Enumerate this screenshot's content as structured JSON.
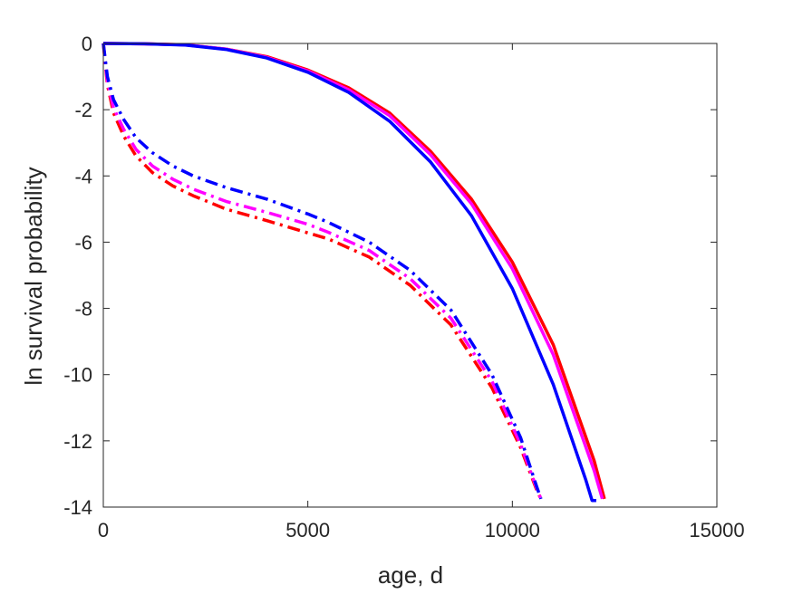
{
  "chart_data": {
    "type": "line",
    "title": "",
    "xlabel": "age, d",
    "ylabel": "ln survival probability",
    "xlim": [
      0,
      15000
    ],
    "ylim": [
      -14,
      0
    ],
    "xticks": [
      0,
      5000,
      10000,
      15000
    ],
    "yticks": [
      0,
      -2,
      -4,
      -6,
      -8,
      -10,
      -12,
      -14
    ],
    "xtick_labels": [
      "0",
      "5000",
      "10000",
      "15000"
    ],
    "ytick_labels": [
      "0",
      "-2",
      "-4",
      "-6",
      "-8",
      "-10",
      "-12",
      "-14"
    ],
    "grid": false,
    "legend": "none",
    "series": [
      {
        "color": "#ff0000",
        "style": "solid",
        "x": [
          0,
          1000,
          2000,
          3000,
          4000,
          5000,
          6000,
          7000,
          8000,
          9000,
          10000,
          11000,
          12000,
          12250
        ],
        "y": [
          0,
          -0.01,
          -0.04,
          -0.17,
          -0.4,
          -0.8,
          -1.34,
          -2.1,
          -3.26,
          -4.7,
          -6.6,
          -9.1,
          -12.6,
          -13.75
        ]
      },
      {
        "color": "#ff00ff",
        "style": "solid",
        "x": [
          0,
          1000,
          2000,
          3000,
          4000,
          5000,
          6000,
          7000,
          8000,
          9000,
          10000,
          11000,
          12000,
          12200
        ],
        "y": [
          0,
          -0.01,
          -0.04,
          -0.17,
          -0.42,
          -0.83,
          -1.4,
          -2.18,
          -3.36,
          -4.84,
          -6.8,
          -9.4,
          -12.9,
          -13.75
        ]
      },
      {
        "color": "#0000ff",
        "style": "solid",
        "x": [
          0,
          1000,
          2000,
          3000,
          4000,
          5000,
          6000,
          7000,
          8000,
          9000,
          10000,
          11000,
          11800,
          11950,
          12050
        ],
        "y": [
          0,
          -0.01,
          -0.05,
          -0.18,
          -0.44,
          -0.87,
          -1.48,
          -2.35,
          -3.58,
          -5.2,
          -7.4,
          -10.3,
          -13.2,
          -13.8,
          -13.8
        ]
      },
      {
        "color": "#ff0000",
        "style": "dashdot",
        "x": [
          0,
          100,
          250,
          500,
          800,
          1200,
          1700,
          2200,
          3000,
          4000,
          5000,
          5500,
          6500,
          7500,
          8500,
          9500,
          10200,
          10600,
          10700
        ],
        "y": [
          0,
          -1.25,
          -2.1,
          -2.8,
          -3.4,
          -3.9,
          -4.3,
          -4.6,
          -5.0,
          -5.35,
          -5.72,
          -5.9,
          -6.45,
          -7.3,
          -8.5,
          -10.4,
          -12.2,
          -13.5,
          -13.75
        ]
      },
      {
        "color": "#ff00ff",
        "style": "dashdot",
        "x": [
          0,
          100,
          250,
          500,
          800,
          1200,
          1700,
          2200,
          3000,
          4000,
          5000,
          5500,
          6500,
          7500,
          8500,
          9500,
          10200,
          10600,
          10700
        ],
        "y": [
          0,
          -1.15,
          -1.95,
          -2.6,
          -3.2,
          -3.7,
          -4.1,
          -4.4,
          -4.77,
          -5.1,
          -5.46,
          -5.7,
          -6.25,
          -7.1,
          -8.3,
          -10.2,
          -12.1,
          -13.45,
          -13.75
        ]
      },
      {
        "color": "#0000ff",
        "style": "dashdot",
        "x": [
          0,
          100,
          250,
          500,
          800,
          1200,
          1700,
          2200,
          3000,
          4000,
          5000,
          5500,
          6500,
          7500,
          8500,
          9500,
          10200,
          10600,
          10700
        ],
        "y": [
          0,
          -1.0,
          -1.7,
          -2.3,
          -2.85,
          -3.3,
          -3.7,
          -4.0,
          -4.35,
          -4.7,
          -5.15,
          -5.4,
          -6.0,
          -6.85,
          -8.05,
          -10.0,
          -11.9,
          -13.4,
          -13.75
        ]
      }
    ]
  }
}
